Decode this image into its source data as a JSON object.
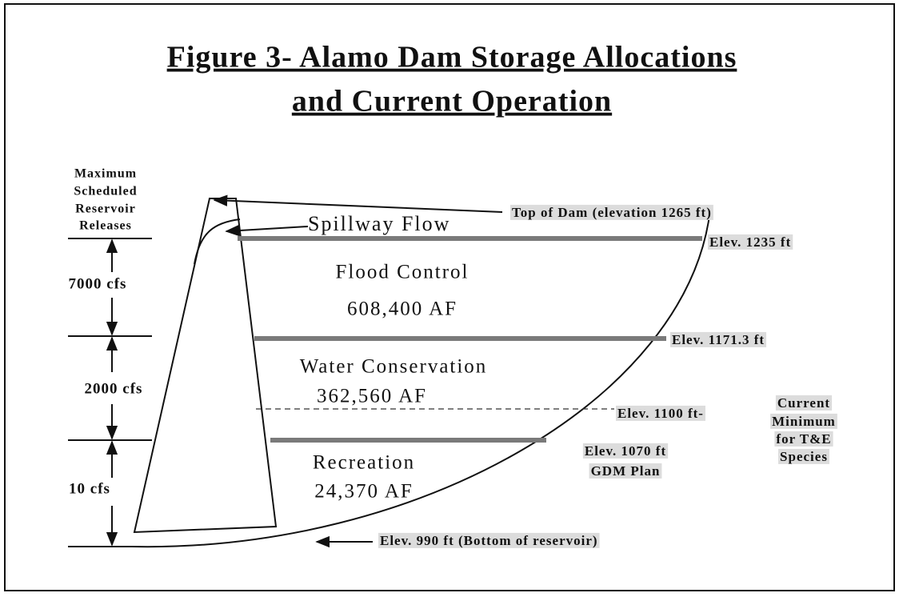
{
  "title": {
    "lines": [
      "Figure 3- Alamo Dam Storage Allocations",
      "and Current Operation"
    ]
  },
  "release_label": {
    "lines": [
      "Maximum",
      "Scheduled",
      "Reservoir",
      "Releases"
    ]
  },
  "releases": [
    "7000 cfs",
    "2000 cfs",
    "10 cfs"
  ],
  "spillway": "Spillway Flow",
  "zones": [
    {
      "name": "Flood Control",
      "storage": "608,400 AF"
    },
    {
      "name": "Water Conservation",
      "storage": "362,560 AF"
    },
    {
      "name": "Recreation",
      "storage": "24,370 AF"
    }
  ],
  "elevations": {
    "top_of_dam": "Top of Dam (elevation 1265 ft)",
    "spillway_crest": "Elev. 1235 ft",
    "conservation_top": "Elev. 1171.3 ft",
    "current_minimum": "Elev. 1100 ft-",
    "recreation_top": [
      "Elev. 1070 ft",
      "GDM Plan"
    ],
    "bottom": "Elev. 990 ft (Bottom of reservoir)"
  },
  "current_minimum_note": {
    "lines": [
      "Current",
      "Minimum",
      "for T&E",
      "Species"
    ]
  }
}
